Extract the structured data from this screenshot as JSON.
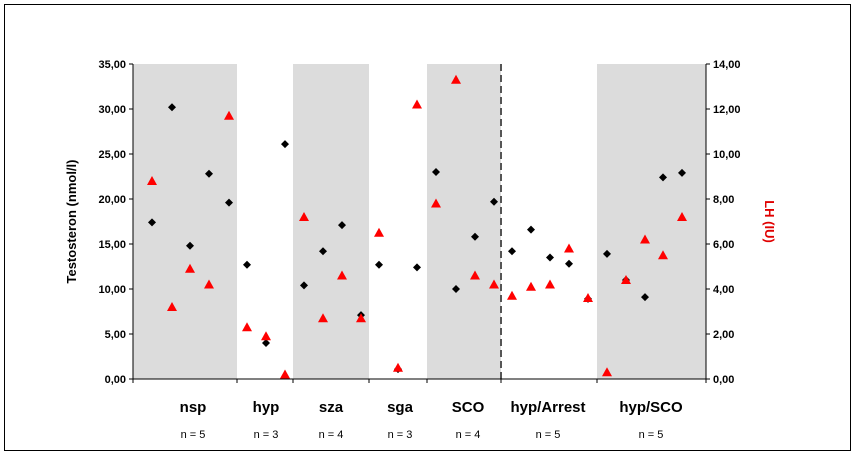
{
  "chart_data": {
    "type": "scatter",
    "colors": {
      "testosteron": "#000000",
      "lh": "#ff0000",
      "band": "#dcdcdc",
      "right_axis_label": "#e00000"
    },
    "y_left": {
      "label": "Testosteron (nmol/l)",
      "range": [
        0,
        35
      ],
      "ticks": [
        "0,00",
        "5,00",
        "10,00",
        "15,00",
        "20,00",
        "25,00",
        "30,00",
        "35,00"
      ]
    },
    "y_right": {
      "label": "LH (IU)",
      "range": [
        0,
        14
      ],
      "ticks": [
        "0,00",
        "2,00",
        "4,00",
        "6,00",
        "8,00",
        "10,00",
        "12,00",
        "14,00"
      ]
    },
    "groups": [
      {
        "name": "nsp",
        "n": "n = 5",
        "shaded": true,
        "testosteron": [
          17.4,
          30.2,
          14.8,
          22.8,
          19.6
        ],
        "lh": [
          8.8,
          3.2,
          4.9,
          4.2,
          11.7
        ]
      },
      {
        "name": "hyp",
        "n": "n = 3",
        "shaded": false,
        "testosteron": [
          12.7,
          4.0,
          26.1
        ],
        "lh": [
          2.3,
          1.9,
          0.2
        ]
      },
      {
        "name": "sza",
        "n": "n = 4",
        "shaded": true,
        "testosteron": [
          10.4,
          14.2,
          17.1,
          7.1
        ],
        "lh": [
          7.2,
          2.7,
          4.6,
          2.7
        ]
      },
      {
        "name": "sga",
        "n": "n = 3",
        "shaded": false,
        "testosteron": [
          12.7,
          1.1,
          12.4
        ],
        "lh": [
          6.5,
          0.5,
          12.2
        ]
      },
      {
        "name": "SCO",
        "n": "n = 4",
        "shaded": true,
        "testosteron": [
          23.0,
          10.0,
          15.8,
          19.7
        ],
        "lh": [
          7.8,
          13.3,
          4.6,
          4.2
        ]
      },
      {
        "name": "hyp/Arrest",
        "n": "n = 5",
        "shaded": false,
        "testosteron": [
          14.2,
          16.6,
          13.5,
          12.8,
          8.9
        ],
        "lh": [
          3.7,
          4.1,
          4.2,
          5.8,
          3.6
        ]
      },
      {
        "name": "hyp/SCO",
        "n": "n = 5",
        "shaded": true,
        "testosteron": [
          13.9,
          11.0,
          9.1,
          22.4,
          22.9
        ],
        "lh": [
          0.3,
          4.4,
          6.2,
          5.5,
          7.2
        ]
      }
    ],
    "divider_after_group": "SCO",
    "legend": "none",
    "grid": false
  }
}
